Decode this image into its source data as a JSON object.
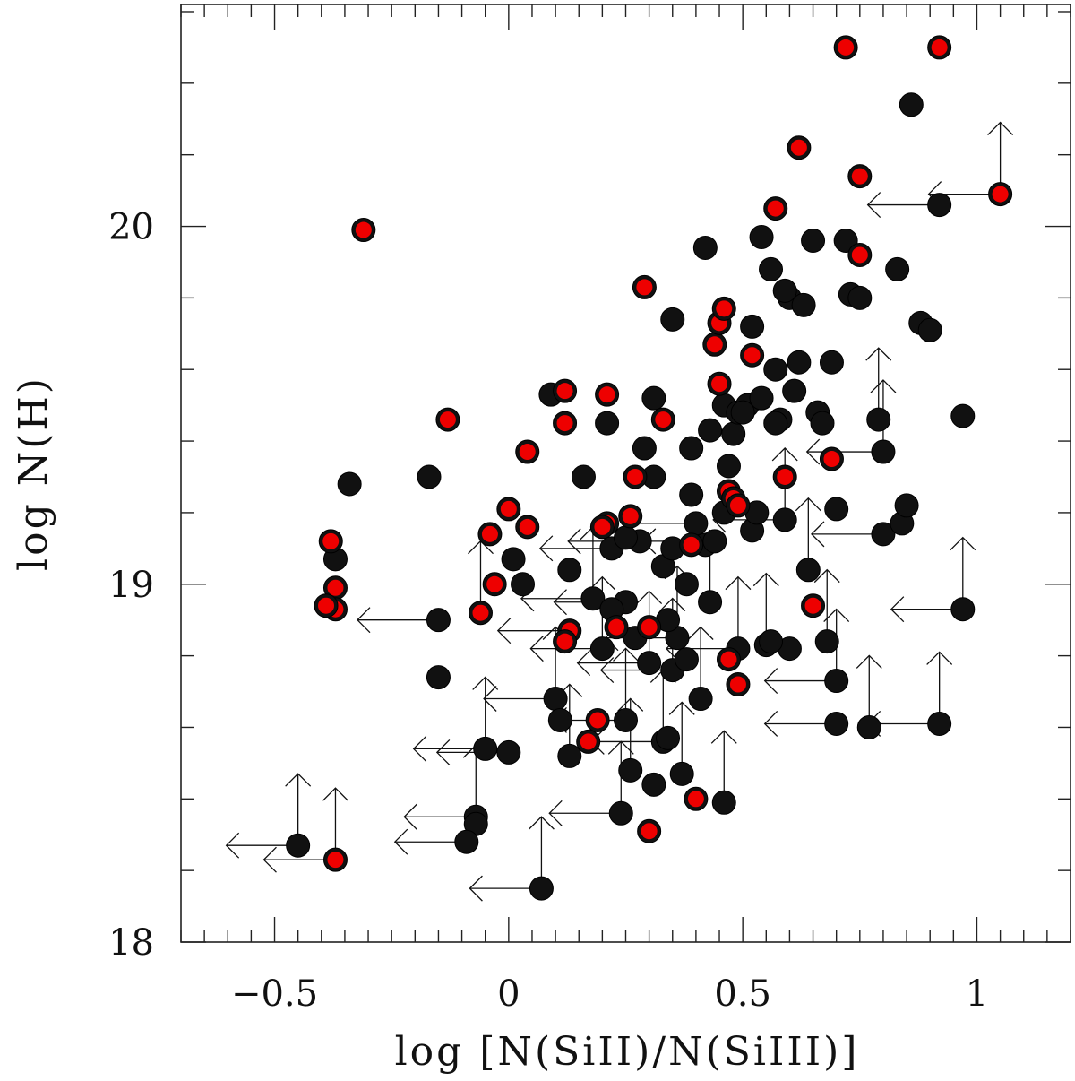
{
  "chart_data": {
    "type": "scatter",
    "title": "",
    "xlabel": "log [N(SiII)/N(SiIII)]",
    "ylabel": "log N(H)",
    "xlim": [
      -0.7,
      1.2
    ],
    "ylim": [
      18.0,
      20.62
    ],
    "x_ticks": [
      -0.5,
      0,
      0.5,
      1
    ],
    "x_tick_labels": [
      "−0.5",
      "0",
      "0.5",
      "1"
    ],
    "y_ticks": [
      18,
      19,
      20
    ],
    "y_tick_labels": [
      "18",
      "19",
      "20"
    ],
    "grid": false,
    "legend": "none",
    "colors": {
      "black_marker": "#111111",
      "red_marker": "#ee0000",
      "axis": "#222222"
    },
    "series": [
      {
        "marker": "black filled circle",
        "color": "#111111",
        "points": [
          [
            -0.45,
            18.27
          ],
          [
            -0.34,
            19.28
          ],
          [
            -0.37,
            19.07
          ],
          [
            -0.15,
            18.74
          ],
          [
            -0.15,
            18.9
          ],
          [
            -0.17,
            19.3
          ],
          [
            -0.07,
            18.35
          ],
          [
            -0.07,
            18.33
          ],
          [
            -0.09,
            18.28
          ],
          [
            -0.05,
            18.54
          ],
          [
            0.0,
            18.53
          ],
          [
            0.01,
            19.07
          ],
          [
            0.03,
            19.0
          ],
          [
            0.07,
            18.15
          ],
          [
            0.1,
            18.68
          ],
          [
            0.11,
            18.62
          ],
          [
            0.13,
            18.52
          ],
          [
            0.13,
            19.04
          ],
          [
            0.16,
            19.3
          ],
          [
            0.18,
            18.96
          ],
          [
            0.2,
            18.82
          ],
          [
            0.22,
            19.1
          ],
          [
            0.25,
            18.95
          ],
          [
            0.26,
            18.48
          ],
          [
            0.24,
            18.36
          ],
          [
            0.25,
            18.62
          ],
          [
            0.28,
            19.12
          ],
          [
            0.29,
            19.38
          ],
          [
            0.31,
            19.3
          ],
          [
            0.31,
            18.44
          ],
          [
            0.3,
            18.78
          ],
          [
            0.33,
            18.56
          ],
          [
            0.33,
            19.05
          ],
          [
            0.34,
            18.57
          ],
          [
            0.35,
            19.1
          ],
          [
            0.35,
            18.76
          ],
          [
            0.36,
            18.85
          ],
          [
            0.37,
            18.47
          ],
          [
            0.38,
            19.0
          ],
          [
            0.38,
            18.79
          ],
          [
            0.39,
            19.25
          ],
          [
            0.39,
            19.38
          ],
          [
            0.4,
            19.17
          ],
          [
            0.41,
            18.68
          ],
          [
            0.42,
            19.11
          ],
          [
            0.43,
            18.95
          ],
          [
            0.43,
            19.43
          ],
          [
            0.44,
            19.12
          ],
          [
            0.46,
            18.39
          ],
          [
            0.46,
            19.5
          ],
          [
            0.47,
            19.33
          ],
          [
            0.48,
            19.42
          ],
          [
            0.49,
            18.82
          ],
          [
            0.49,
            19.48
          ],
          [
            0.51,
            19.5
          ],
          [
            0.52,
            19.15
          ],
          [
            0.53,
            19.2
          ],
          [
            0.54,
            19.52
          ],
          [
            0.54,
            19.97
          ],
          [
            0.55,
            18.83
          ],
          [
            0.56,
            19.88
          ],
          [
            0.57,
            19.6
          ],
          [
            0.58,
            19.46
          ],
          [
            0.59,
            19.18
          ],
          [
            0.6,
            19.8
          ],
          [
            0.6,
            18.82
          ],
          [
            0.61,
            19.54
          ],
          [
            0.62,
            19.62
          ],
          [
            0.63,
            19.78
          ],
          [
            0.64,
            19.04
          ],
          [
            0.65,
            19.96
          ],
          [
            0.66,
            19.48
          ],
          [
            0.67,
            19.45
          ],
          [
            0.68,
            18.84
          ],
          [
            0.69,
            19.62
          ],
          [
            0.7,
            19.21
          ],
          [
            0.7,
            18.73
          ],
          [
            0.7,
            18.61
          ],
          [
            0.72,
            19.96
          ],
          [
            0.73,
            19.81
          ],
          [
            0.75,
            19.8
          ],
          [
            0.77,
            18.6
          ],
          [
            0.79,
            19.46
          ],
          [
            0.8,
            19.37
          ],
          [
            0.8,
            19.14
          ],
          [
            0.83,
            19.88
          ],
          [
            0.84,
            19.17
          ],
          [
            0.85,
            19.22
          ],
          [
            0.86,
            20.34
          ],
          [
            0.88,
            19.73
          ],
          [
            0.9,
            19.71
          ],
          [
            0.92,
            18.61
          ],
          [
            0.92,
            20.06
          ],
          [
            0.97,
            18.93
          ],
          [
            0.97,
            19.47
          ],
          [
            0.52,
            19.72
          ],
          [
            0.46,
            19.2
          ],
          [
            0.25,
            19.13
          ],
          [
            0.31,
            19.52
          ],
          [
            0.21,
            19.45
          ],
          [
            0.09,
            19.53
          ],
          [
            0.56,
            18.84
          ],
          [
            0.42,
            19.94
          ],
          [
            0.35,
            19.74
          ],
          [
            0.59,
            19.82
          ],
          [
            0.5,
            19.48
          ],
          [
            0.57,
            19.45
          ],
          [
            0.27,
            18.85
          ],
          [
            0.22,
            18.93
          ],
          [
            0.34,
            18.9
          ]
        ]
      },
      {
        "marker": "red filled circle",
        "color": "#ee0000",
        "points": [
          [
            -0.31,
            19.99
          ],
          [
            -0.38,
            19.12
          ],
          [
            -0.37,
            18.99
          ],
          [
            -0.37,
            18.93
          ],
          [
            -0.39,
            18.94
          ],
          [
            -0.37,
            18.23
          ],
          [
            -0.13,
            19.46
          ],
          [
            -0.04,
            19.14
          ],
          [
            -0.03,
            19.0
          ],
          [
            -0.06,
            18.92
          ],
          [
            0.0,
            19.21
          ],
          [
            0.04,
            19.37
          ],
          [
            0.04,
            19.16
          ],
          [
            0.12,
            19.54
          ],
          [
            0.12,
            19.45
          ],
          [
            0.13,
            18.87
          ],
          [
            0.12,
            18.84
          ],
          [
            0.17,
            18.56
          ],
          [
            0.19,
            18.62
          ],
          [
            0.21,
            19.53
          ],
          [
            0.21,
            19.17
          ],
          [
            0.23,
            18.88
          ],
          [
            0.26,
            19.19
          ],
          [
            0.27,
            19.3
          ],
          [
            0.29,
            19.83
          ],
          [
            0.3,
            18.88
          ],
          [
            0.3,
            18.31
          ],
          [
            0.33,
            19.46
          ],
          [
            0.39,
            19.11
          ],
          [
            0.4,
            18.4
          ],
          [
            0.44,
            19.67
          ],
          [
            0.45,
            19.73
          ],
          [
            0.46,
            19.77
          ],
          [
            0.45,
            19.56
          ],
          [
            0.47,
            19.26
          ],
          [
            0.48,
            19.24
          ],
          [
            0.47,
            18.79
          ],
          [
            0.49,
            18.72
          ],
          [
            0.52,
            19.64
          ],
          [
            0.57,
            20.05
          ],
          [
            0.59,
            19.3
          ],
          [
            0.62,
            20.22
          ],
          [
            0.65,
            18.94
          ],
          [
            0.69,
            19.35
          ],
          [
            0.72,
            20.5
          ],
          [
            0.75,
            20.14
          ],
          [
            0.75,
            19.92
          ],
          [
            0.92,
            20.5
          ],
          [
            1.05,
            20.09
          ],
          [
            0.49,
            19.22
          ],
          [
            0.2,
            19.16
          ]
        ]
      }
    ],
    "upper_limits_x": [
      [
        -0.45,
        18.27
      ],
      [
        -0.37,
        18.23
      ],
      [
        -0.17,
        18.9
      ],
      [
        -0.09,
        18.28
      ],
      [
        -0.07,
        18.35
      ],
      [
        -0.05,
        18.54
      ],
      [
        0.0,
        18.53
      ],
      [
        0.07,
        18.15
      ],
      [
        0.1,
        18.68
      ],
      [
        0.13,
        18.87
      ],
      [
        0.18,
        18.96
      ],
      [
        0.2,
        18.82
      ],
      [
        0.25,
        18.95
      ],
      [
        0.24,
        18.36
      ],
      [
        0.25,
        18.62
      ],
      [
        0.3,
        18.78
      ],
      [
        0.33,
        18.56
      ],
      [
        0.36,
        18.85
      ],
      [
        0.4,
        19.17
      ],
      [
        0.44,
        19.12
      ],
      [
        0.49,
        18.82
      ],
      [
        0.59,
        19.18
      ],
      [
        0.7,
        18.73
      ],
      [
        0.7,
        18.61
      ],
      [
        0.79,
        19.37
      ],
      [
        0.8,
        19.14
      ],
      [
        0.92,
        18.61
      ],
      [
        0.92,
        20.06
      ],
      [
        0.97,
        18.93
      ],
      [
        1.05,
        20.09
      ],
      [
        0.22,
        19.1
      ],
      [
        0.35,
        18.76
      ],
      [
        0.28,
        19.12
      ]
    ],
    "lower_limits_y": [
      [
        -0.45,
        18.27
      ],
      [
        -0.37,
        18.23
      ],
      [
        -0.07,
        18.35
      ],
      [
        0.07,
        18.15
      ],
      [
        0.1,
        18.68
      ],
      [
        0.18,
        18.96
      ],
      [
        0.2,
        18.82
      ],
      [
        0.24,
        18.36
      ],
      [
        0.25,
        18.62
      ],
      [
        0.33,
        18.56
      ],
      [
        0.36,
        18.85
      ],
      [
        0.37,
        18.47
      ],
      [
        0.41,
        18.68
      ],
      [
        0.46,
        18.39
      ],
      [
        0.49,
        18.82
      ],
      [
        0.55,
        18.83
      ],
      [
        0.59,
        19.18
      ],
      [
        0.64,
        19.04
      ],
      [
        0.68,
        18.84
      ],
      [
        0.7,
        18.73
      ],
      [
        0.77,
        18.6
      ],
      [
        0.79,
        19.46
      ],
      [
        0.8,
        19.37
      ],
      [
        0.92,
        18.61
      ],
      [
        0.97,
        18.93
      ],
      [
        1.05,
        20.09
      ],
      [
        -0.05,
        18.54
      ],
      [
        0.13,
        18.52
      ],
      [
        0.3,
        18.78
      ],
      [
        0.43,
        18.95
      ],
      [
        0.26,
        18.48
      ],
      [
        -0.06,
        18.92
      ],
      [
        0.35,
        18.76
      ]
    ]
  }
}
